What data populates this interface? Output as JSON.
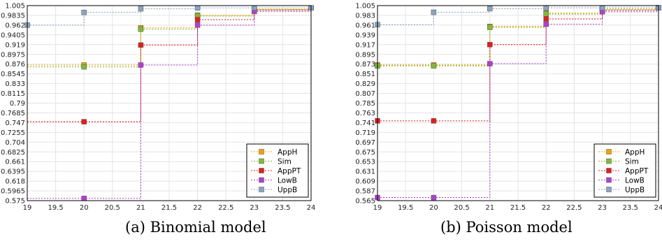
{
  "chart_data": [
    {
      "type": "line",
      "step": "post",
      "caption": "(a) Binomial model",
      "xlim": [
        19,
        24
      ],
      "ylim": [
        0.575,
        1.005
      ],
      "x_ticks": [
        "19",
        "19.5",
        "20",
        "20.5",
        "21",
        "21.5",
        "22",
        "22.5",
        "23",
        "23.5",
        "24"
      ],
      "y_ticks": [
        "0.575",
        "0.5965",
        "0.618",
        "0.6395",
        "0.661",
        "0.6825",
        "0.704",
        "0.7255",
        "0.747",
        "0.7685",
        "0.79",
        "0.8115",
        "0.833",
        "0.8545",
        "0.876",
        "0.8975",
        "0.919",
        "0.9405",
        "0.962",
        "0.9835",
        "1.005"
      ],
      "grid": true,
      "legend_position": "bottom-right",
      "series": [
        {
          "name": "AppH",
          "color": "#f0a300",
          "x": [
            20,
            21,
            22,
            23,
            24
          ],
          "y": [
            0.874,
            0.956,
            0.984,
            0.997,
            1.0
          ]
        },
        {
          "name": "Sim",
          "color": "#82b937",
          "x": [
            20,
            21,
            22,
            23,
            24
          ],
          "y": [
            0.87,
            0.953,
            0.982,
            0.996,
            1.0
          ]
        },
        {
          "name": "AppPT",
          "color": "#e11e1e",
          "x": [
            20,
            21,
            22,
            23,
            24
          ],
          "y": [
            0.749,
            0.918,
            0.974,
            0.995,
            1.0
          ]
        },
        {
          "name": "LowB",
          "color": "#b040d0",
          "x": [
            20,
            21,
            22,
            23,
            24
          ],
          "y": [
            0.58,
            0.874,
            0.962,
            0.992,
            1.0
          ]
        },
        {
          "name": "UppB",
          "color": "#8aa4c0",
          "x": [
            19,
            20,
            21,
            22,
            23,
            24
          ],
          "y": [
            0.962,
            0.99,
            0.998,
            1.0,
            1.0,
            1.0
          ]
        }
      ]
    },
    {
      "type": "line",
      "step": "post",
      "caption": "(b) Poisson model",
      "xlim": [
        19,
        24
      ],
      "ylim": [
        0.565,
        1.005
      ],
      "x_ticks": [
        "19",
        "19.5",
        "20",
        "20.5",
        "21",
        "21.5",
        "22",
        "22.5",
        "23",
        "23.5",
        "24"
      ],
      "y_ticks": [
        "0.565",
        "0.587",
        "0.609",
        "0.631",
        "0.653",
        "0.675",
        "0.697",
        "0.719",
        "0.741",
        "0.763",
        "0.785",
        "0.807",
        "0.829",
        "0.851",
        "0.873",
        "0.895",
        "0.917",
        "0.939",
        "0.961",
        "0.983",
        "1.005"
      ],
      "grid": true,
      "legend_position": "bottom-right",
      "series": [
        {
          "name": "AppH",
          "color": "#f0a300",
          "x": [
            19,
            20,
            21,
            22,
            23,
            24
          ],
          "y": [
            0.871,
            0.871,
            0.958,
            0.988,
            0.997,
            1.0
          ]
        },
        {
          "name": "Sim",
          "color": "#82b937",
          "x": [
            19,
            20,
            21,
            22,
            23,
            24
          ],
          "y": [
            0.869,
            0.869,
            0.956,
            0.986,
            0.996,
            1.0
          ]
        },
        {
          "name": "AppPT",
          "color": "#e11e1e",
          "x": [
            19,
            20,
            21,
            22,
            23,
            24
          ],
          "y": [
            0.745,
            0.745,
            0.917,
            0.975,
            0.994,
            1.0
          ]
        },
        {
          "name": "LowB",
          "color": "#b040d0",
          "x": [
            19,
            20,
            21,
            22,
            23,
            24
          ],
          "y": [
            0.572,
            0.572,
            0.874,
            0.963,
            0.991,
            1.0
          ]
        },
        {
          "name": "UppB",
          "color": "#8aa4c0",
          "x": [
            19,
            20,
            21,
            22,
            23,
            24
          ],
          "y": [
            0.962,
            0.99,
            0.998,
            1.0,
            1.0,
            1.0
          ]
        }
      ]
    }
  ]
}
